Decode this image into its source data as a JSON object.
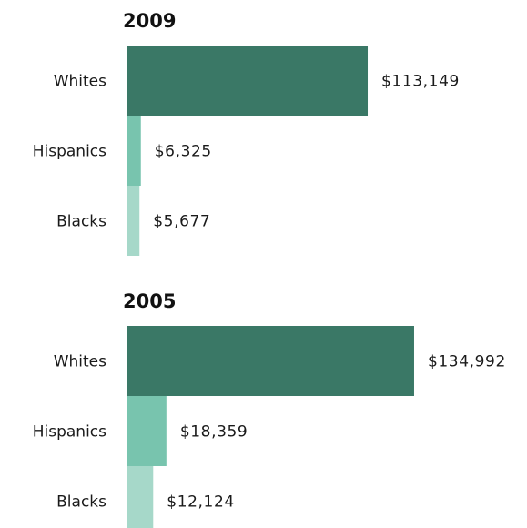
{
  "chart_data": [
    {
      "type": "bar",
      "orientation": "horizontal",
      "title": "2009",
      "categories": [
        "Whites",
        "Hispanics",
        "Blacks"
      ],
      "values": [
        113149,
        6325,
        5677
      ],
      "value_labels": [
        "$113,149",
        "$6,325",
        "$5,677"
      ],
      "xlim": [
        0,
        135000
      ],
      "grid": false,
      "legend": "none"
    },
    {
      "type": "bar",
      "orientation": "horizontal",
      "title": "2005",
      "categories": [
        "Whites",
        "Hispanics",
        "Blacks"
      ],
      "values": [
        134992,
        18359,
        12124
      ],
      "value_labels": [
        "$134,992",
        "$18,359",
        "$12,124"
      ],
      "xlim": [
        0,
        135000
      ],
      "grid": false,
      "legend": "none"
    }
  ],
  "colors": {
    "Whites": "#3a7866",
    "Hispanics": "#78c4ae",
    "Blacks": "#a6d8c9"
  }
}
